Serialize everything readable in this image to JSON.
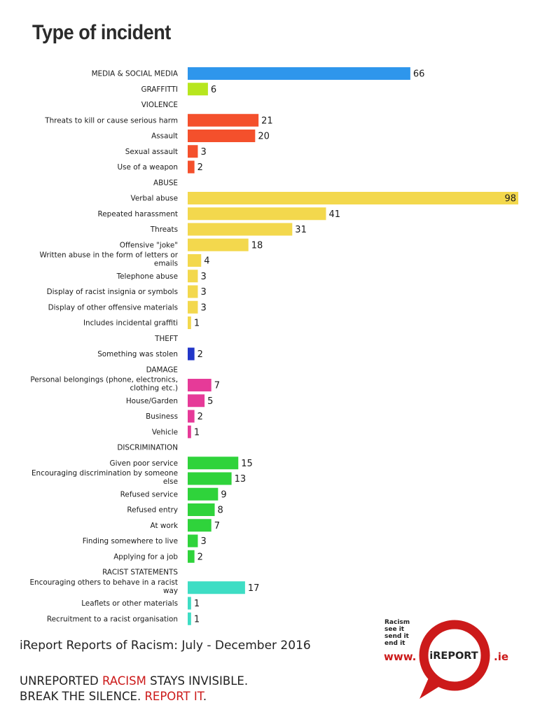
{
  "title": "Type of incident",
  "chart_data": {
    "type": "bar",
    "orientation": "horizontal",
    "title": "Type of incident",
    "rows": [
      {
        "label": "MEDIA & SOCIAL MEDIA",
        "value": 66,
        "color": "#2E96EC"
      },
      {
        "label": "GRAFFITTI",
        "value": 6,
        "color": "#B7E61E"
      },
      {
        "label": "VIOLENCE",
        "header": true
      },
      {
        "label": "Threats to kill or cause serious harm",
        "value": 21,
        "color": "#F4502C"
      },
      {
        "label": "Assault",
        "value": 20,
        "color": "#F4502C"
      },
      {
        "label": "Sexual assault",
        "value": 3,
        "color": "#F4502C"
      },
      {
        "label": "Use of a weapon",
        "value": 2,
        "color": "#F4502C"
      },
      {
        "label": "ABUSE",
        "header": true
      },
      {
        "label": "Verbal abuse",
        "value": 98,
        "color": "#F3D84D"
      },
      {
        "label": "Repeated harassment",
        "value": 41,
        "color": "#F3D84D"
      },
      {
        "label": "Threats",
        "value": 31,
        "color": "#F3D84D"
      },
      {
        "label": "Offensive \"joke\"",
        "value": 18,
        "color": "#F3D84D"
      },
      {
        "label": "Written abuse in the form of letters or emails",
        "value": 4,
        "color": "#F3D84D"
      },
      {
        "label": "Telephone abuse",
        "value": 3,
        "color": "#F3D84D"
      },
      {
        "label": "Display of racist insignia or symbols",
        "value": 3,
        "color": "#F3D84D"
      },
      {
        "label": "Display of other offensive materials",
        "value": 3,
        "color": "#F3D84D"
      },
      {
        "label": "Includes incidental graffiti",
        "value": 1,
        "color": "#F3D84D"
      },
      {
        "label": "THEFT",
        "header": true
      },
      {
        "label": "Something was stolen",
        "value": 2,
        "color": "#2236C8"
      },
      {
        "label": "DAMAGE",
        "header": true
      },
      {
        "label": "Personal belongings (phone, electronics, clothing etc.)",
        "value": 7,
        "color": "#E63A98"
      },
      {
        "label": "House/Garden",
        "value": 5,
        "color": "#E63A98"
      },
      {
        "label": "Business",
        "value": 2,
        "color": "#E63A98"
      },
      {
        "label": "Vehicle",
        "value": 1,
        "color": "#E63A98"
      },
      {
        "label": "DISCRIMINATION",
        "header": true
      },
      {
        "label": "Given poor service",
        "value": 15,
        "color": "#2FD33B"
      },
      {
        "label": "Encouraging discrimination by someone else",
        "value": 13,
        "color": "#2FD33B"
      },
      {
        "label": "Refused service",
        "value": 9,
        "color": "#2FD33B"
      },
      {
        "label": "Refused entry",
        "value": 8,
        "color": "#2FD33B"
      },
      {
        "label": "At work",
        "value": 7,
        "color": "#2FD33B"
      },
      {
        "label": "Finding somewhere to live",
        "value": 3,
        "color": "#2FD33B"
      },
      {
        "label": "Applying for a job",
        "value": 2,
        "color": "#2FD33B"
      },
      {
        "label": "RACIST STATEMENTS",
        "header": true
      },
      {
        "label": "Encouraging others to behave in a racist way",
        "value": 17,
        "color": "#3EDDC4"
      },
      {
        "label": "Leaflets or other materials",
        "value": 1,
        "color": "#3EDDC4"
      },
      {
        "label": "Recruitment to a racist organisation",
        "value": 1,
        "color": "#3EDDC4"
      }
    ]
  },
  "footer": {
    "subtitle": "iReport Reports of Racism: July - December 2016",
    "slogan_line1_a": "UNREPORTED ",
    "slogan_line1_red": "RACISM",
    "slogan_line1_b": " STAYS INVISIBLE.",
    "slogan_line2_a": "BREAK THE SILENCE. ",
    "slogan_line2_red": "REPORT IT",
    "slogan_line2_b": ".",
    "accent_color": "#CC1A1A"
  },
  "logo": {
    "tagline": [
      "Racism",
      "see it",
      "send it",
      "end it"
    ],
    "www": "www.",
    "word": "iREPORT",
    "ie": ".ie",
    "icon": "speech-bubble-ring-logo"
  }
}
